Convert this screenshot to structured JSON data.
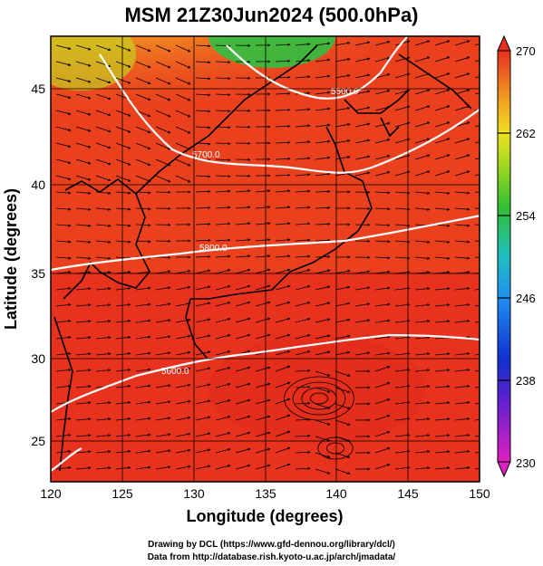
{
  "title": "MSM 21Z30Jun2024 (500.0hPa)",
  "xlabel": "Longitude (degrees)",
  "ylabel": "Latitude  (degrees)",
  "x_ticks": [
    "120",
    "125",
    "130",
    "135",
    "140",
    "145",
    "150"
  ],
  "y_ticks": [
    "25",
    "30",
    "35",
    "40",
    "45"
  ],
  "colorbar_ticks": [
    "270",
    "262",
    "254",
    "246",
    "238",
    "230"
  ],
  "contour_labels": [
    "5700.0",
    "5800.0",
    "5500.0",
    "5600.0"
  ],
  "footer_line1": "Drawing by DCL (https://www.gfd-dennou.org/library/dcl/)",
  "footer_line2": "Data from http://database.rish.kyoto-u.ac.jp/arch/jmadata/",
  "colors": {
    "warm": "#e8321e",
    "orange": "#f07020",
    "yellow": "#e8e020",
    "green": "#30c030",
    "cyan": "#20c0e0",
    "blue": "#1030d0",
    "magenta": "#e020c0",
    "contour": "#ffffff",
    "land": "#000000"
  }
}
